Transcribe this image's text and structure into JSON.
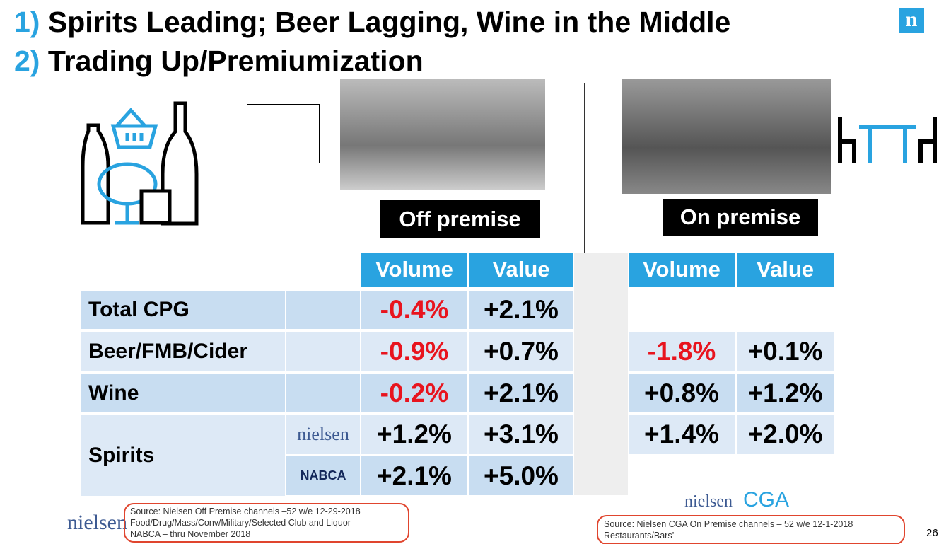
{
  "header": {
    "line1_number": "1)",
    "line1_text": "Spirits Leading; Beer Lagging, Wine in the Middle",
    "line2_number": "2)",
    "line2_text": "Trading Up/Premiumization",
    "logo": "n"
  },
  "sections": {
    "off_premise": "Off premise",
    "on_premise": "On premise"
  },
  "table": {
    "columns": [
      "Volume",
      "Value",
      "Volume",
      "Value"
    ],
    "rows": [
      {
        "label": "Total CPG",
        "off": [
          "-0.4%",
          "+2.1%"
        ]
      },
      {
        "label": "Beer/FMB/Cider",
        "off": [
          "-0.9%",
          "+0.7%"
        ],
        "on": [
          "-1.8%",
          "+0.1%"
        ]
      },
      {
        "label": "Wine",
        "off": [
          "-0.2%",
          "+2.1%"
        ],
        "on": [
          "+0.8%",
          "+1.2%"
        ]
      },
      {
        "label": "Spirits",
        "sub": [
          {
            "source": "nielsen",
            "off": [
              "+1.2%",
              "+3.1%"
            ],
            "on": [
              "+1.4%",
              "+2.0%"
            ]
          },
          {
            "source": "NABCA",
            "off": [
              "+2.1%",
              "+5.0%"
            ]
          }
        ]
      }
    ]
  },
  "footer": {
    "brand": "nielsen",
    "on_brand": "nielsen",
    "on_brand2": "CGA",
    "off_source": [
      "Source:  Nielsen Off Premise channels –52 w/e 12-29-2018",
      "Food/Drug/Mass/Conv/Military/Selected Club and Liquor",
      "NABCA – thru November 2018"
    ],
    "on_source": [
      "Source:  Nielsen CGA On Premise channels – 52 w/e 12-1-2018",
      "Restaurants/Bars’"
    ],
    "page": "26"
  }
}
